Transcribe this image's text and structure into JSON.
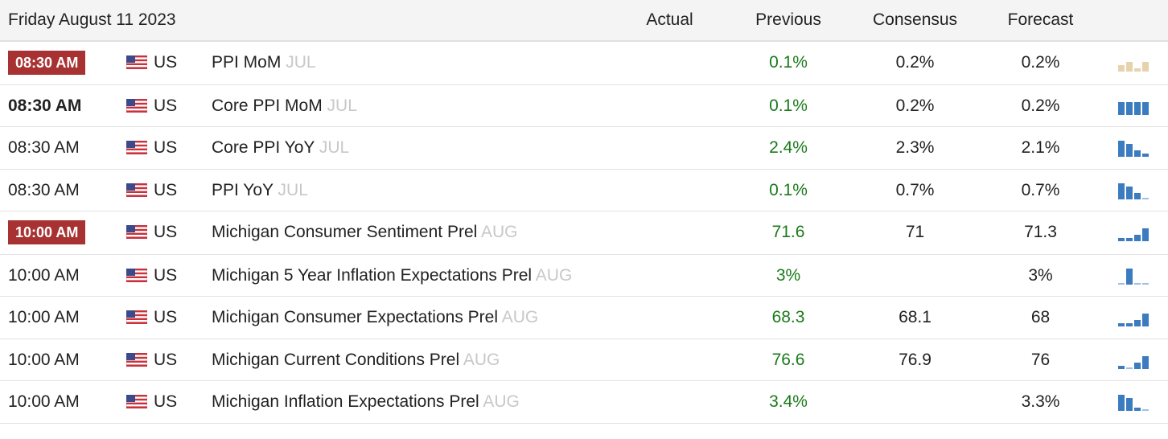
{
  "header": {
    "date": "Friday August 11 2023",
    "columns": [
      "Actual",
      "Previous",
      "Consensus",
      "Forecast"
    ]
  },
  "rows": [
    {
      "time": "08:30 AM",
      "country": "US",
      "event": "PPI MoM",
      "period": "JUL",
      "previous": "0.1%",
      "consensus": "0.2%",
      "forecast": "0.2%"
    },
    {
      "time": "08:30 AM",
      "country": "US",
      "event": "Core PPI MoM",
      "period": "JUL",
      "previous": "0.1%",
      "consensus": "0.2%",
      "forecast": "0.2%"
    },
    {
      "time": "08:30 AM",
      "country": "US",
      "event": "Core PPI YoY",
      "period": "JUL",
      "previous": "2.4%",
      "consensus": "2.3%",
      "forecast": "2.1%"
    },
    {
      "time": "08:30 AM",
      "country": "US",
      "event": "PPI YoY",
      "period": "JUL",
      "previous": "0.1%",
      "consensus": "0.7%",
      "forecast": "0.7%"
    },
    {
      "time": "10:00 AM",
      "country": "US",
      "event": "Michigan Consumer Sentiment Prel",
      "period": "AUG",
      "previous": "71.6",
      "consensus": "71",
      "forecast": "71.3"
    },
    {
      "time": "10:00 AM",
      "country": "US",
      "event": "Michigan 5 Year Inflation Expectations Prel",
      "period": "AUG",
      "previous": "3%",
      "forecast": "3%"
    },
    {
      "time": "10:00 AM",
      "country": "US",
      "event": "Michigan Consumer Expectations Prel",
      "period": "AUG",
      "previous": "68.3",
      "consensus": "68.1",
      "forecast": "68"
    },
    {
      "time": "10:00 AM",
      "country": "US",
      "event": "Michigan Current Conditions Prel",
      "period": "AUG",
      "previous": "76.6",
      "consensus": "76.9",
      "forecast": "76"
    },
    {
      "time": "10:00 AM",
      "country": "US",
      "event": "Michigan Inflation Expectations Prel",
      "period": "AUG",
      "previous": "3.4%",
      "forecast": "3.3%"
    }
  ]
}
